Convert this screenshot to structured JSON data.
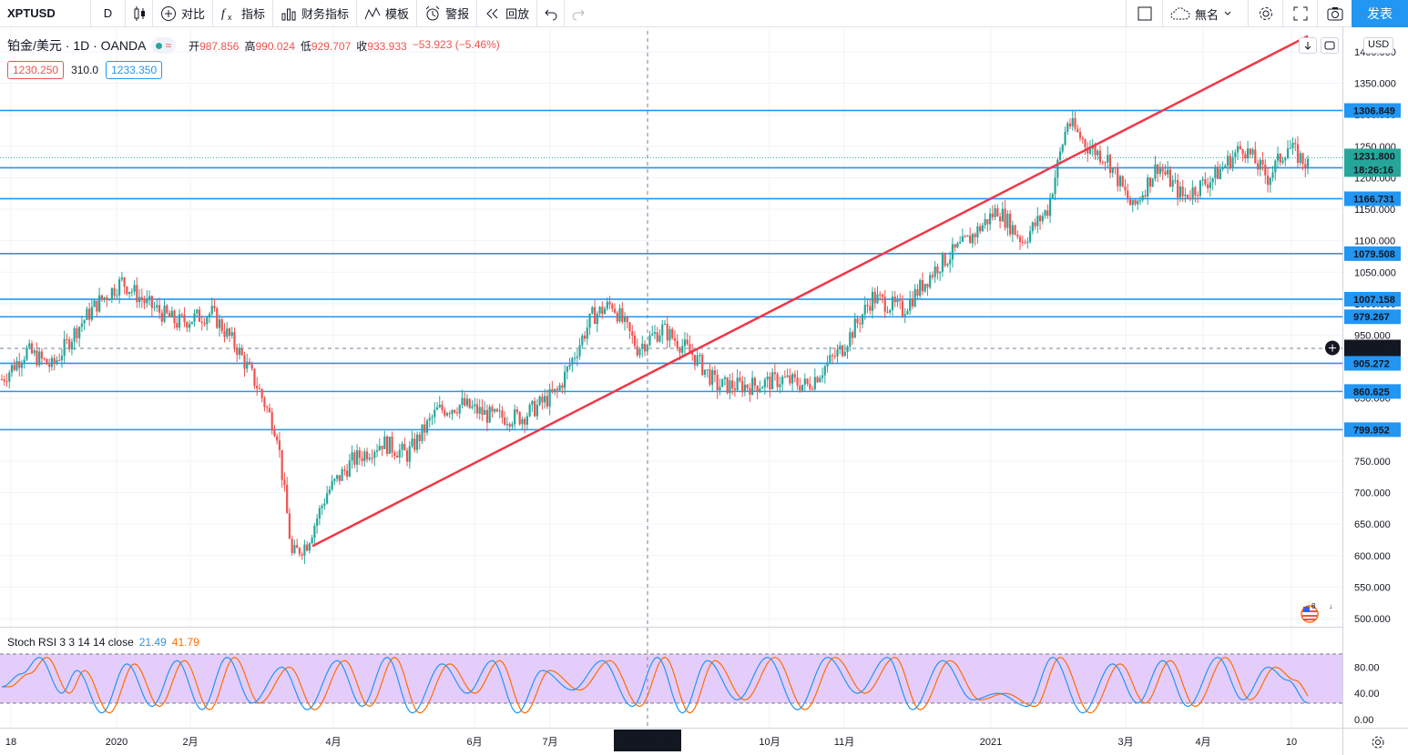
{
  "toolbar": {
    "symbol": "XPTUSD",
    "interval": "D",
    "compare_label": "对比",
    "indicators_label": "指标",
    "financials_label": "财务指标",
    "templates_label": "模板",
    "alert_label": "警报",
    "replay_label": "回放",
    "layout_name": "無名",
    "publish_label": "发表"
  },
  "legend": {
    "title": "铂金/美元 · 1D · OANDA",
    "open_label": "开",
    "open": "987.856",
    "high_label": "高",
    "high": "990.024",
    "low_label": "低",
    "low": "929.707",
    "close_label": "收",
    "close": "933.933",
    "change": "−53.923 (−5.46%)",
    "sell_price": "1230.250",
    "spread": "310.0",
    "buy_price": "1233.350"
  },
  "stoch": {
    "label": "Stoch RSI 3 3 14 14 close",
    "k": "21.49",
    "d": "41.79",
    "k_color": "#2196f3",
    "d_color": "#ff6d00"
  },
  "price_axis": {
    "currency": "USD",
    "ticks": [
      "1400.000",
      "1350.000",
      "1300.000",
      "1250.000",
      "1200.000",
      "1150.000",
      "1100.000",
      "1050.000",
      "1000.000",
      "950.000",
      "900.000",
      "850.000",
      "800.000",
      "750.000",
      "700.000",
      "650.000",
      "600.000",
      "550.000",
      "500.000"
    ],
    "h_lines": [
      "1306.849",
      "1215.845",
      "1166.731",
      "1079.508",
      "1007.158",
      "979.267",
      "905.272",
      "860.625",
      "799.952"
    ],
    "current_price": "1231.800",
    "countdown": "18:26:16",
    "crosshair_price": "929.832"
  },
  "stoch_axis": {
    "ticks": [
      "80.00",
      "40.00",
      "0.00"
    ]
  },
  "time_axis": {
    "labels": [
      "18",
      "2020",
      "2月",
      "4月",
      "6月",
      "7月",
      "2020-08-11",
      "10月",
      "11月",
      "2021",
      "3月",
      "4月",
      "10"
    ],
    "crosshair_date": "2020-08-11"
  },
  "colors": {
    "up": "#26a69a",
    "down": "#ef5350",
    "hline": "#2196f3",
    "trendline": "#f23645",
    "stoch_band": "#e1c4fa"
  },
  "chart_data": {
    "type": "candlestick",
    "symbol": "XPTUSD",
    "interval": "1D",
    "ylim": [
      500,
      1400
    ],
    "trendline": {
      "from": [
        "2020-03-19",
        615
      ],
      "to": [
        "2021-04-14",
        1425
      ]
    },
    "path": [
      [
        0,
        880
      ],
      [
        10,
        925
      ],
      [
        20,
        900
      ],
      [
        30,
        960
      ],
      [
        38,
        1000
      ],
      [
        48,
        1035
      ],
      [
        58,
        1000
      ],
      [
        70,
        970
      ],
      [
        84,
        985
      ],
      [
        94,
        930
      ],
      [
        102,
        870
      ],
      [
        110,
        795
      ],
      [
        116,
        600
      ],
      [
        122,
        620
      ],
      [
        130,
        700
      ],
      [
        140,
        750
      ],
      [
        152,
        780
      ],
      [
        162,
        760
      ],
      [
        174,
        830
      ],
      [
        184,
        840
      ],
      [
        196,
        820
      ],
      [
        208,
        820
      ],
      [
        222,
        860
      ],
      [
        236,
        980
      ],
      [
        244,
        1000
      ],
      [
        254,
        930
      ],
      [
        264,
        960
      ],
      [
        276,
        920
      ],
      [
        286,
        870
      ],
      [
        300,
        870
      ],
      [
        312,
        880
      ],
      [
        322,
        870
      ],
      [
        336,
        930
      ],
      [
        348,
        1010
      ],
      [
        360,
        990
      ],
      [
        374,
        1060
      ],
      [
        386,
        1100
      ],
      [
        398,
        1150
      ],
      [
        408,
        1100
      ],
      [
        418,
        1150
      ],
      [
        426,
        1290
      ],
      [
        434,
        1250
      ],
      [
        442,
        1230
      ],
      [
        452,
        1150
      ],
      [
        462,
        1220
      ],
      [
        472,
        1170
      ],
      [
        484,
        1200
      ],
      [
        496,
        1250
      ],
      [
        506,
        1200
      ],
      [
        514,
        1250
      ],
      [
        522,
        1220
      ]
    ],
    "stoch_path": [
      [
        0,
        50
      ],
      [
        8,
        70
      ],
      [
        15,
        95
      ],
      [
        24,
        40
      ],
      [
        30,
        75
      ],
      [
        40,
        10
      ],
      [
        50,
        85
      ],
      [
        60,
        20
      ],
      [
        70,
        90
      ],
      [
        80,
        15
      ],
      [
        90,
        95
      ],
      [
        100,
        25
      ],
      [
        112,
        80
      ],
      [
        122,
        15
      ],
      [
        134,
        90
      ],
      [
        144,
        20
      ],
      [
        154,
        95
      ],
      [
        164,
        10
      ],
      [
        176,
        85
      ],
      [
        186,
        40
      ],
      [
        196,
        90
      ],
      [
        206,
        10
      ],
      [
        216,
        75
      ],
      [
        228,
        45
      ],
      [
        240,
        90
      ],
      [
        252,
        20
      ],
      [
        262,
        95
      ],
      [
        272,
        10
      ],
      [
        282,
        90
      ],
      [
        294,
        30
      ],
      [
        306,
        95
      ],
      [
        318,
        15
      ],
      [
        330,
        95
      ],
      [
        342,
        40
      ],
      [
        354,
        95
      ],
      [
        364,
        15
      ],
      [
        376,
        90
      ],
      [
        388,
        30
      ],
      [
        398,
        40
      ],
      [
        410,
        20
      ],
      [
        420,
        95
      ],
      [
        432,
        10
      ],
      [
        444,
        85
      ],
      [
        454,
        25
      ],
      [
        464,
        90
      ],
      [
        474,
        20
      ],
      [
        486,
        95
      ],
      [
        496,
        30
      ],
      [
        506,
        80
      ],
      [
        514,
        60
      ],
      [
        522,
        25
      ]
    ]
  }
}
